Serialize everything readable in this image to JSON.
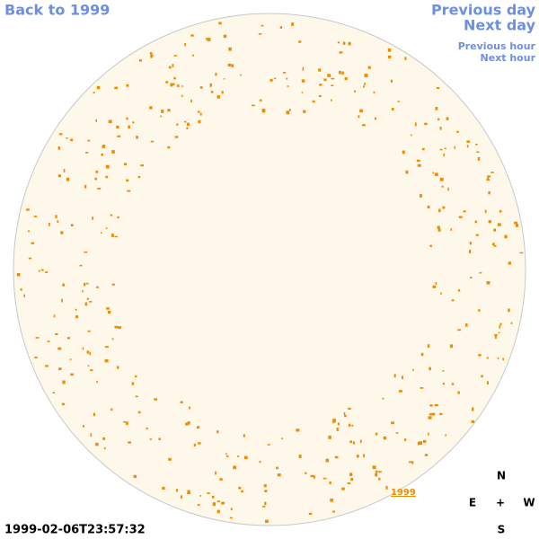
{
  "nav": {
    "back_year": "Back to 1999",
    "previous_day": "Previous day",
    "next_day": "Next day",
    "previous_hour": "Previous hour",
    "next_hour": "Next hour"
  },
  "year_link": "1999",
  "timestamp": "1999-02-06T23:57:32",
  "compass": {
    "north": "N",
    "east": "E",
    "center": "+",
    "west": "W",
    "south": "S"
  }
}
